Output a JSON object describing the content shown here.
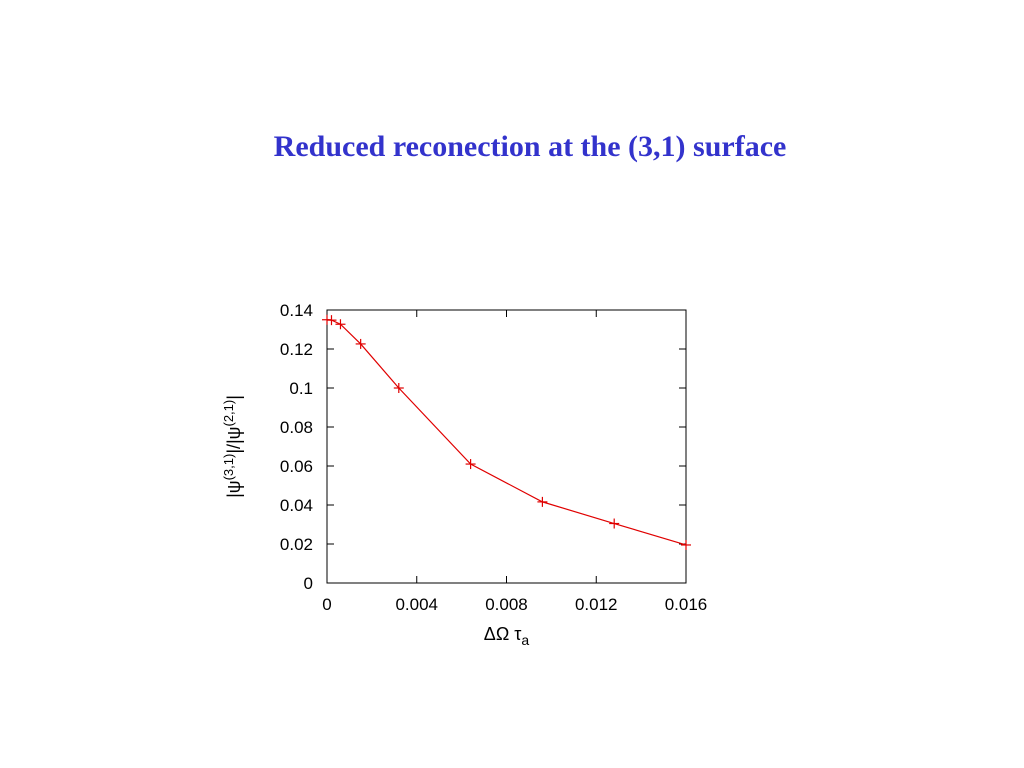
{
  "slide": {
    "title": "Reduced reconection at the (3,1) surface",
    "title_color": "#3333cc"
  },
  "chart_data": {
    "type": "line",
    "title": "",
    "xlabel": "ΔΩ τa",
    "ylabel": "|ψ(3,1)|/|ψ(2,1)|",
    "xlim": [
      0,
      0.016
    ],
    "ylim": [
      0,
      0.14
    ],
    "x_ticks": [
      "0",
      "0.004",
      "0.008",
      "0.012",
      "0.016"
    ],
    "y_ticks": [
      "0",
      "0.02",
      "0.04",
      "0.06",
      "0.08",
      "0.1",
      "0.12",
      "0.14"
    ],
    "grid": false,
    "marker": "plus",
    "series": [
      {
        "color": "#e00000",
        "x": [
          0.0,
          0.0002,
          0.0006,
          0.0015,
          0.0032,
          0.0064,
          0.0096,
          0.0128,
          0.016
        ],
        "y": [
          0.135,
          0.1348,
          0.1327,
          0.1226,
          0.1,
          0.061,
          0.0416,
          0.0305,
          0.0195
        ]
      }
    ]
  }
}
